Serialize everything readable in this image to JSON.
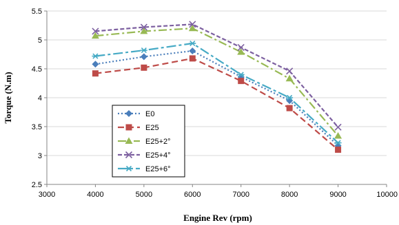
{
  "chart_data": {
    "type": "line",
    "title": "",
    "xlabel": "Engine Rev (rpm)",
    "ylabel": "Torque  (N.m)",
    "xlim": [
      3000,
      10000
    ],
    "ylim": [
      2.5,
      5.5
    ],
    "xticks": [
      3000,
      4000,
      5000,
      6000,
      7000,
      8000,
      9000,
      10000
    ],
    "xtick_labels": [
      "3000",
      "4000",
      "5000",
      "6000",
      "7000",
      "8000",
      "9000",
      "10000"
    ],
    "yticks": [
      2.5,
      3,
      3.5,
      4,
      4.5,
      5,
      5.5
    ],
    "ytick_labels": [
      "2.5",
      "3",
      "3.5",
      "4",
      "4.5",
      "5",
      "5.5"
    ],
    "grid": "horizontal",
    "legend_position": "inside-lower-left",
    "x": [
      4000,
      5000,
      6000,
      7000,
      8000,
      9000
    ],
    "series": [
      {
        "name": "E0",
        "values": [
          4.58,
          4.71,
          4.81,
          4.36,
          3.95,
          3.17
        ],
        "color": "#4a7ebb",
        "dash": "2,3",
        "marker": "diamond"
      },
      {
        "name": "E25",
        "values": [
          4.42,
          4.52,
          4.68,
          4.29,
          3.82,
          3.1
        ],
        "color": "#be4b48",
        "dash": "9,5",
        "marker": "square"
      },
      {
        "name": "E25+2°",
        "values": [
          5.07,
          5.15,
          5.2,
          4.79,
          4.33,
          3.34
        ],
        "color": "#98b954",
        "dash": "12,4,3,4",
        "marker": "triangle"
      },
      {
        "name": "E25+4°",
        "values": [
          5.15,
          5.22,
          5.27,
          4.87,
          4.46,
          3.49
        ],
        "color": "#7d60a0",
        "dash": "6,3",
        "marker": "x"
      },
      {
        "name": "E25+6°",
        "values": [
          4.72,
          4.82,
          4.94,
          4.4,
          4.0,
          3.22
        ],
        "color": "#46aac5",
        "dash": "14,4,4,4",
        "marker": "star"
      }
    ]
  }
}
